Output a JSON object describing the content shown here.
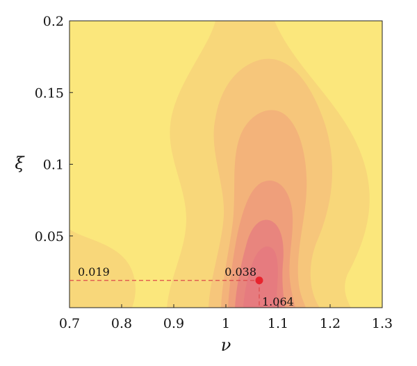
{
  "chart_data": {
    "type": "heatmap",
    "title": "",
    "xlabel": "ν",
    "ylabel": "ξ",
    "xlim": [
      0.7,
      1.3
    ],
    "ylim": [
      0.0,
      0.2
    ],
    "xticks": [
      0.7,
      0.8,
      0.9,
      1.0,
      1.1,
      1.2,
      1.3
    ],
    "xtick_labels": [
      "0.7",
      "0.8",
      "0.9",
      "1",
      "1.1",
      "1.2",
      "1.3"
    ],
    "yticks": [
      0.05,
      0.1,
      0.15,
      0.2
    ],
    "ytick_labels": [
      "0.05",
      "0.1",
      "0.15",
      "0.2"
    ],
    "grid": false,
    "colormap": [
      "#fbe77c",
      "#f8d77a",
      "#f6c67b",
      "#f3b37a",
      "#ef9f7b",
      "#e8857e"
    ],
    "minimum": {
      "x": 1.064,
      "y": 0.019,
      "value": 0.038,
      "marker_color": "#e8232d"
    },
    "annotations": [
      {
        "text": "0.019",
        "anchor": "y-guide-start"
      },
      {
        "text": "0.038",
        "anchor": "minimum-point"
      },
      {
        "text": "1.064",
        "anchor": "x-guide-end"
      }
    ]
  }
}
